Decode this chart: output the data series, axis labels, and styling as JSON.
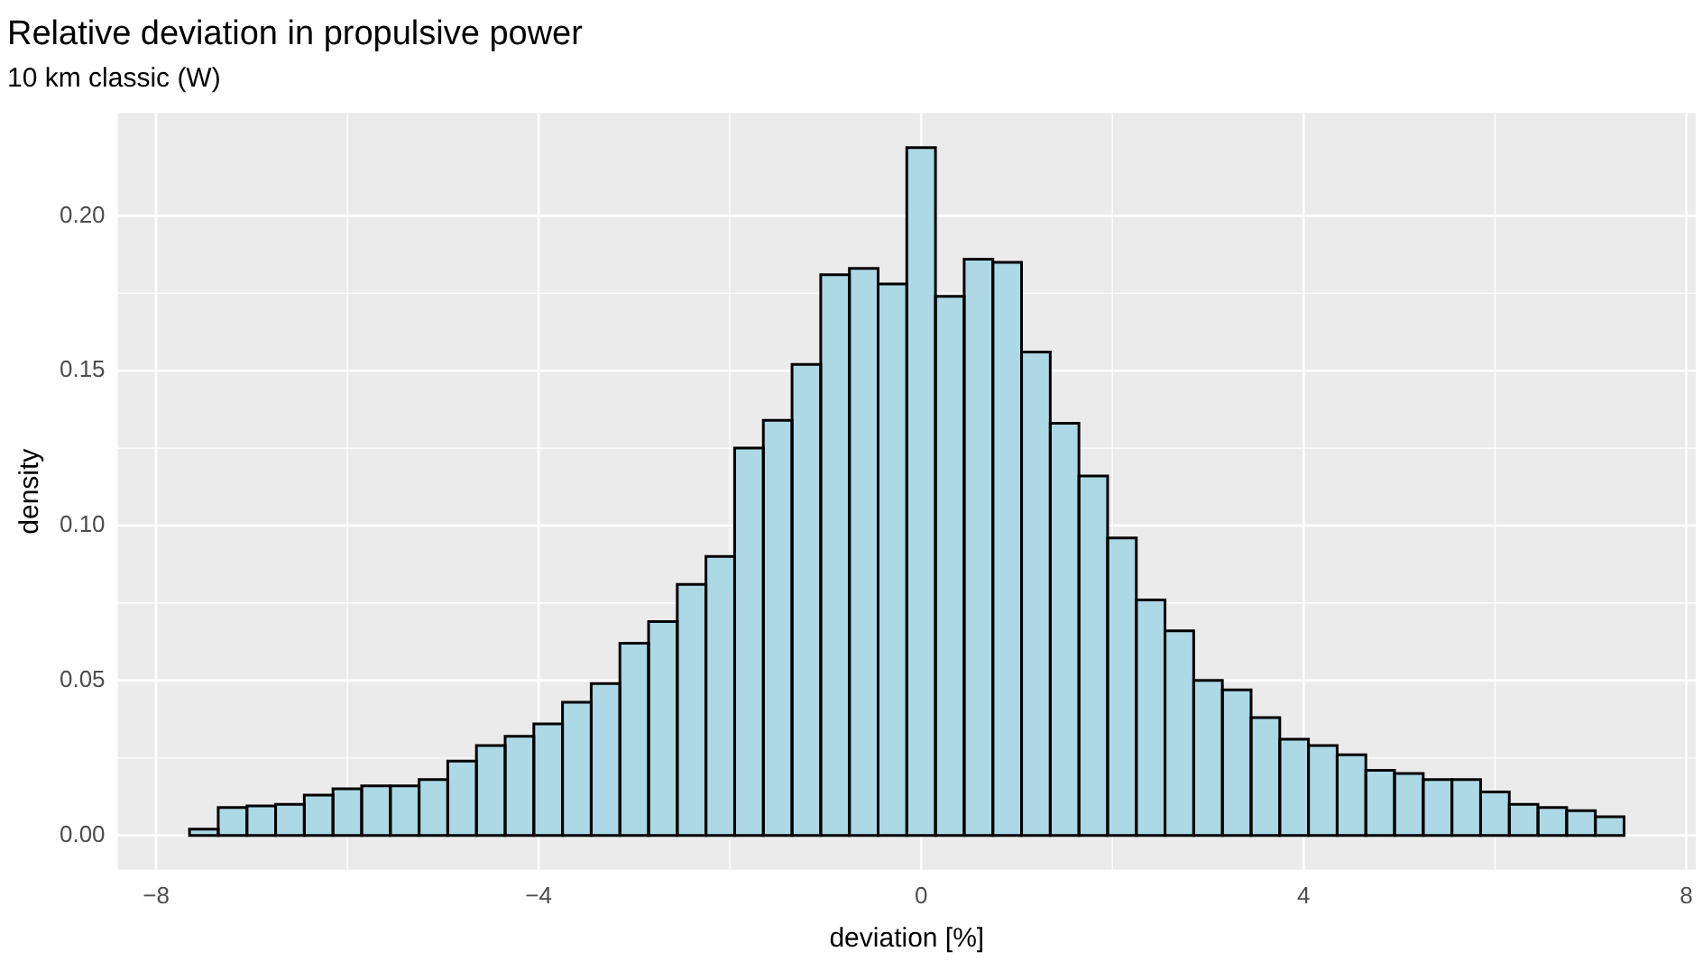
{
  "chart_data": {
    "type": "histogram",
    "title": "Relative deviation in propulsive power",
    "subtitle": "10 km classic (W)",
    "xlabel": "deviation [%]",
    "ylabel": "density",
    "bins": [
      -7.65,
      -7.35,
      -7.05,
      -6.75,
      -6.45,
      -6.15,
      -5.85,
      -5.55,
      -5.25,
      -4.95,
      -4.65,
      -4.35,
      -4.05,
      -3.75,
      -3.45,
      -3.15,
      -2.85,
      -2.55,
      -2.25,
      -1.95,
      -1.65,
      -1.35,
      -1.05,
      -0.75,
      -0.45,
      -0.15,
      0.15,
      0.45,
      0.75,
      1.05,
      1.35,
      1.65,
      1.95,
      2.25,
      2.55,
      2.85,
      3.15,
      3.45,
      3.75,
      4.05,
      4.35,
      4.65,
      4.95,
      5.25,
      5.55,
      5.85,
      6.15,
      6.45,
      6.75,
      7.05,
      7.35
    ],
    "values": [
      0.002,
      0.009,
      0.0095,
      0.01,
      0.013,
      0.015,
      0.016,
      0.016,
      0.018,
      0.024,
      0.029,
      0.032,
      0.036,
      0.043,
      0.049,
      0.062,
      0.069,
      0.081,
      0.09,
      0.125,
      0.134,
      0.152,
      0.181,
      0.183,
      0.178,
      0.222,
      0.174,
      0.186,
      0.185,
      0.156,
      0.133,
      0.116,
      0.096,
      0.076,
      0.066,
      0.05,
      0.047,
      0.038,
      0.031,
      0.029,
      0.026,
      0.021,
      0.02,
      0.018,
      0.018,
      0.014,
      0.01,
      0.009,
      0.008,
      0.006
    ],
    "color": "#add8e6",
    "xlim": [
      -8.4,
      8.1
    ],
    "xticks": [
      {
        "value": -8,
        "label": "−8"
      },
      {
        "value": -4,
        "label": "−4"
      },
      {
        "value": 0,
        "label": "0"
      },
      {
        "value": 4,
        "label": "4"
      },
      {
        "value": 8,
        "label": "8"
      }
    ],
    "ylim": [
      -0.0111,
      0.2331
    ],
    "yticks": [
      {
        "value": 0,
        "label": "0.00"
      },
      {
        "value": 0.05,
        "label": "0.05"
      },
      {
        "value": 0.1,
        "label": "0.10"
      },
      {
        "value": 0.15,
        "label": "0.15"
      },
      {
        "value": 0.2,
        "label": "0.20"
      }
    ],
    "grid": true,
    "legend": false
  }
}
